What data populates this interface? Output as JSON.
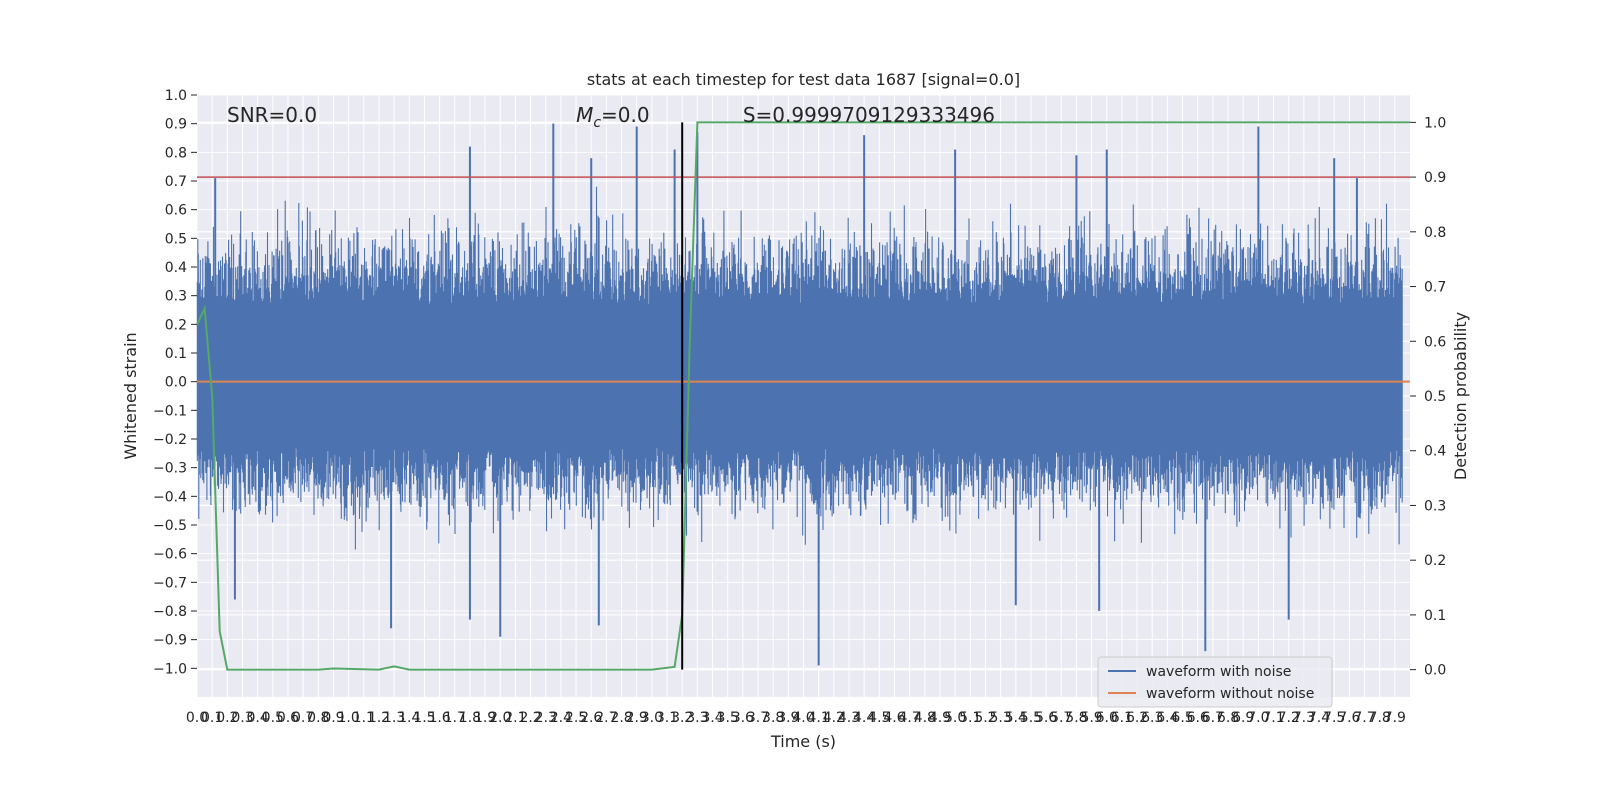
{
  "chart_data": {
    "type": "line",
    "title": "stats at each timestep for test data 1687 [signal=0.0]",
    "xlabel": "Time (s)",
    "ylabel": "Whitened strain",
    "y2label": "Detection probability",
    "xlim": [
      0.0,
      8.0
    ],
    "ylim": [
      -1.1,
      1.0
    ],
    "y2lim": [
      -0.05,
      1.05
    ],
    "x_tick_step": 0.1,
    "x_tick_max": 7.9,
    "y_ticks": [
      -1.0,
      -0.9,
      -0.8,
      -0.7,
      -0.6,
      -0.5,
      -0.4,
      -0.3,
      -0.2,
      -0.1,
      0.0,
      0.1,
      0.2,
      0.3,
      0.4,
      0.5,
      0.6,
      0.7,
      0.8,
      0.9,
      1.0
    ],
    "y2_ticks": [
      0.0,
      0.1,
      0.2,
      0.3,
      0.4,
      0.5,
      0.6,
      0.7,
      0.8,
      0.9,
      1.0
    ],
    "grid": true,
    "legend_position": "lower-right",
    "series": [
      {
        "name": "waveform with noise",
        "color": "#4c72b0",
        "axis": "left",
        "kind": "noise",
        "typical_amplitude": [
          -0.42,
          0.48
        ],
        "peaks": [
          {
            "x": 0.12,
            "y": 0.71
          },
          {
            "x": 1.8,
            "y": 0.82
          },
          {
            "x": 2.35,
            "y": 0.9
          },
          {
            "x": 2.6,
            "y": 0.78
          },
          {
            "x": 2.9,
            "y": 0.89
          },
          {
            "x": 3.15,
            "y": 0.81
          },
          {
            "x": 3.3,
            "y": 0.87
          },
          {
            "x": 4.4,
            "y": 0.86
          },
          {
            "x": 5.0,
            "y": 0.81
          },
          {
            "x": 5.8,
            "y": 0.79
          },
          {
            "x": 6.0,
            "y": 0.81
          },
          {
            "x": 7.0,
            "y": 0.89
          },
          {
            "x": 7.5,
            "y": 0.78
          },
          {
            "x": 7.65,
            "y": 0.71
          }
        ],
        "troughs": [
          {
            "x": 0.25,
            "y": -0.76
          },
          {
            "x": 1.28,
            "y": -0.86
          },
          {
            "x": 1.8,
            "y": -0.83
          },
          {
            "x": 2.0,
            "y": -0.89
          },
          {
            "x": 2.65,
            "y": -0.85
          },
          {
            "x": 4.1,
            "y": -0.99
          },
          {
            "x": 5.4,
            "y": -0.78
          },
          {
            "x": 5.95,
            "y": -0.8
          },
          {
            "x": 6.65,
            "y": -0.94
          },
          {
            "x": 7.2,
            "y": -0.83
          }
        ]
      },
      {
        "name": "waveform without noise",
        "color": "#dd8452",
        "axis": "left",
        "x": [
          0.0,
          8.0
        ],
        "y": [
          0.0,
          0.0
        ]
      },
      {
        "name": "detection probability",
        "color": "#55a868",
        "axis": "right",
        "x": [
          0.0,
          0.05,
          0.1,
          0.15,
          0.2,
          0.5,
          0.8,
          0.9,
          1.2,
          1.3,
          1.4,
          2.2,
          3.0,
          3.15,
          3.2,
          3.25,
          3.3,
          8.0
        ],
        "y": [
          0.63,
          0.66,
          0.5,
          0.07,
          0.0,
          0.0,
          0.0,
          0.002,
          0.0,
          0.006,
          0.0,
          0.0,
          0.0,
          0.005,
          0.1,
          0.6,
          1.0,
          1.0
        ]
      }
    ],
    "threshold_line": {
      "y2": 0.9,
      "color": "#c44e52"
    },
    "vertical_marker": {
      "x": 3.2,
      "color": "#000000"
    },
    "annotations": {
      "snr": "SNR=0.0",
      "mc_symbol": "M",
      "mc_sub": "c",
      "mc_value": "=0.0",
      "score": "S=0.9999709129333496"
    },
    "legend": [
      {
        "label": "waveform with noise",
        "color": "#4c72b0"
      },
      {
        "label": "waveform without noise",
        "color": "#dd8452"
      }
    ]
  }
}
